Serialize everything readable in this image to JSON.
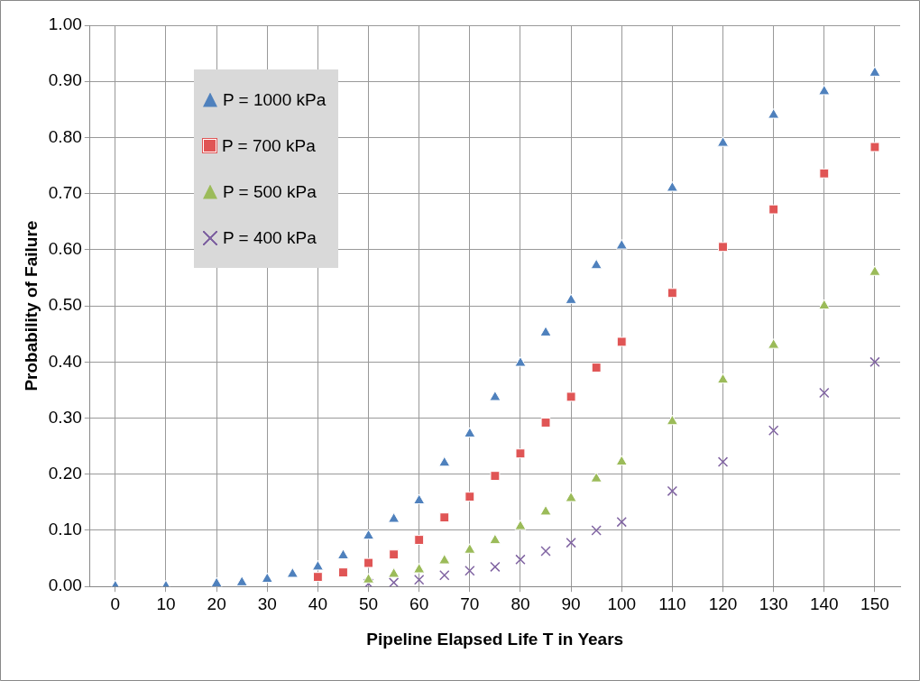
{
  "chart_data": {
    "type": "scatter",
    "xlabel": "Pipeline Elapsed Life T in Years",
    "ylabel": "Probability of Failure",
    "xlim": [
      -5,
      155
    ],
    "xticks": [
      0,
      10,
      20,
      30,
      40,
      50,
      60,
      70,
      80,
      90,
      100,
      110,
      120,
      130,
      140,
      150
    ],
    "ylim": [
      0,
      1
    ],
    "yticks": [
      {
        "value": 0,
        "label": "0.00"
      },
      {
        "value": 0.1,
        "label": "0.10"
      },
      {
        "value": 0.2,
        "label": "0.20"
      },
      {
        "value": 0.3,
        "label": "0.30"
      },
      {
        "value": 0.4,
        "label": "0.40"
      },
      {
        "value": 0.5,
        "label": "0.50"
      },
      {
        "value": 0.6,
        "label": "0.60"
      },
      {
        "value": 0.7,
        "label": "0.70"
      },
      {
        "value": 0.8,
        "label": "0.80"
      },
      {
        "value": 0.9,
        "label": "0.90"
      },
      {
        "value": 1,
        "label": "1.00"
      }
    ],
    "grid": true,
    "legend": "top left",
    "series": [
      {
        "name": "P = 1000 kPa",
        "color": "#4f81bd",
        "marker": "triangle",
        "x": [
          0,
          10,
          20,
          25,
          30,
          35,
          40,
          45,
          50,
          55,
          60,
          65,
          70,
          75,
          80,
          85,
          90,
          95,
          100,
          110,
          120,
          130,
          140,
          150
        ],
        "values": [
          0,
          0,
          0.005,
          0.007,
          0.013,
          0.022,
          0.035,
          0.055,
          0.09,
          0.12,
          0.153,
          0.22,
          0.272,
          0.337,
          0.398,
          0.452,
          0.51,
          0.572,
          0.607,
          0.71,
          0.79,
          0.84,
          0.882,
          0.915
        ]
      },
      {
        "name": "P = 700 kPa",
        "color": "#e05555",
        "marker": "square",
        "x": [
          40,
          45,
          50,
          55,
          60,
          65,
          70,
          75,
          80,
          85,
          90,
          95,
          100,
          110,
          120,
          130,
          140,
          150
        ],
        "values": [
          0.017,
          0.025,
          0.042,
          0.057,
          0.083,
          0.123,
          0.16,
          0.197,
          0.237,
          0.292,
          0.338,
          0.39,
          0.436,
          0.523,
          0.605,
          0.672,
          0.736,
          0.783
        ]
      },
      {
        "name": "P = 500 kPa",
        "color": "#9bbb59",
        "marker": "triangle",
        "x": [
          50,
          55,
          60,
          65,
          70,
          75,
          80,
          85,
          90,
          95,
          100,
          110,
          120,
          130,
          140,
          150
        ],
        "values": [
          0.012,
          0.022,
          0.03,
          0.046,
          0.065,
          0.082,
          0.107,
          0.133,
          0.157,
          0.192,
          0.222,
          0.294,
          0.368,
          0.43,
          0.5,
          0.56
        ]
      },
      {
        "name": "P = 400 kPa",
        "color": "#8064a2",
        "marker": "cross",
        "x": [
          50,
          55,
          60,
          65,
          70,
          75,
          80,
          85,
          90,
          95,
          100,
          110,
          120,
          130,
          140,
          150
        ],
        "values": [
          0.005,
          0.007,
          0.012,
          0.02,
          0.028,
          0.035,
          0.048,
          0.063,
          0.078,
          0.1,
          0.115,
          0.17,
          0.222,
          0.278,
          0.345,
          0.4
        ]
      }
    ]
  }
}
